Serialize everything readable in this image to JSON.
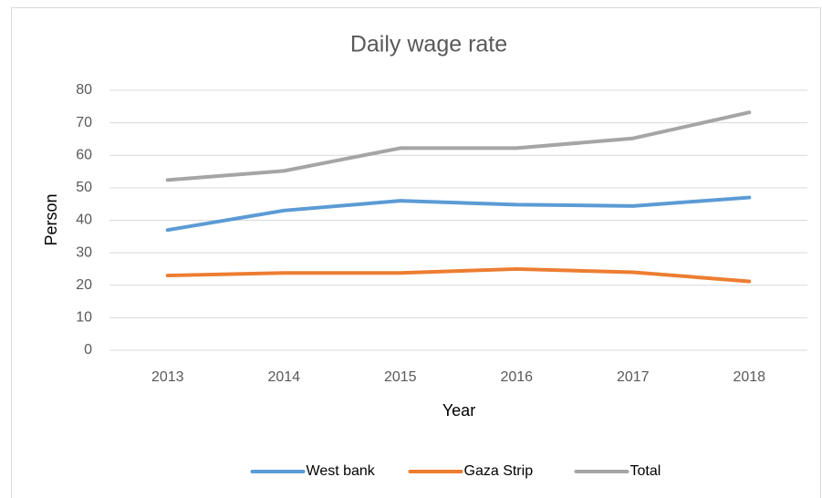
{
  "chart_data": {
    "type": "line",
    "title": "Daily wage rate",
    "x_label": "Year",
    "y_label": "Person",
    "categories": [
      "2013",
      "2014",
      "2015",
      "2016",
      "2017",
      "2018"
    ],
    "series": [
      {
        "name": "West bank",
        "color": "#5b9bd5",
        "values": [
          37,
          43,
          46,
          44.8,
          44.4,
          47
        ]
      },
      {
        "name": "Gaza Strip",
        "color": "#ed7d31",
        "values": [
          23,
          23.8,
          23.8,
          25,
          24,
          21.2
        ]
      },
      {
        "name": "Total",
        "color": "#a5a5a5",
        "values": [
          52.4,
          55.2,
          62.2,
          62.2,
          65.2,
          73.2
        ]
      }
    ],
    "ylim": [
      0,
      80
    ],
    "yticks": [
      0,
      10,
      20,
      30,
      40,
      50,
      60,
      70,
      80
    ],
    "grid": true,
    "legend": "bottom"
  }
}
